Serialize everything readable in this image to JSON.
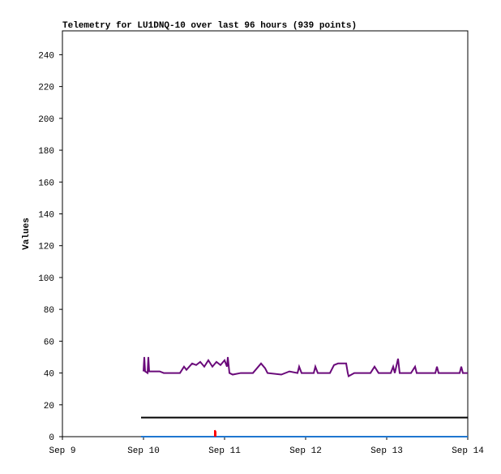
{
  "chart_data": {
    "type": "line",
    "title": "Telemetry for LU1DNQ-10 over last 96 hours (939 points)",
    "y_label": "Values",
    "xlim": [
      9,
      14
    ],
    "ylim": [
      0,
      255
    ],
    "xticks": [
      {
        "value": 9,
        "label": "Sep 9"
      },
      {
        "value": 10,
        "label": "Sep 10"
      },
      {
        "value": 11,
        "label": "Sep 11"
      },
      {
        "value": 12,
        "label": "Sep 12"
      },
      {
        "value": 13,
        "label": "Sep 13"
      },
      {
        "value": 14,
        "label": "Sep 14"
      }
    ],
    "yticks": [
      0,
      20,
      40,
      60,
      80,
      100,
      120,
      140,
      160,
      180,
      200,
      220,
      240
    ],
    "grid": false,
    "series": [
      {
        "color": "#6a0a7a",
        "x": [
          10.0,
          10.01,
          10.02,
          10.05,
          10.06,
          10.07,
          10.2,
          10.25,
          10.4,
          10.45,
          10.5,
          10.53,
          10.6,
          10.65,
          10.7,
          10.75,
          10.8,
          10.85,
          10.9,
          10.95,
          11.0,
          11.03,
          11.04,
          11.06,
          11.1,
          11.2,
          11.35,
          11.4,
          11.45,
          11.5,
          11.53,
          11.7,
          11.8,
          11.9,
          11.92,
          11.95,
          12.1,
          12.12,
          12.15,
          12.3,
          12.35,
          12.4,
          12.5,
          12.52,
          12.53,
          12.6,
          12.8,
          12.85,
          12.9,
          13.05,
          13.08,
          13.1,
          13.14,
          13.16,
          13.3,
          13.35,
          13.37,
          13.6,
          13.62,
          13.64,
          13.8,
          13.9,
          13.92,
          13.94,
          14.0
        ],
        "values": [
          41,
          50,
          41,
          40,
          50,
          41,
          41,
          40,
          40,
          40,
          44,
          42,
          46,
          45,
          47,
          44,
          48,
          44,
          47,
          45,
          48,
          44,
          50,
          40,
          39,
          40,
          40,
          43,
          46,
          43,
          40,
          39,
          41,
          40,
          44,
          40,
          40,
          44,
          40,
          40,
          45,
          46,
          46,
          40,
          38,
          40,
          40,
          44,
          40,
          40,
          44,
          40,
          49,
          40,
          40,
          44,
          40,
          40,
          44,
          40,
          40,
          40,
          44,
          40,
          40
        ]
      },
      {
        "color": "#000000",
        "x": [
          9.97,
          14.0
        ],
        "values": [
          12,
          12
        ]
      },
      {
        "color": "#1f77d0",
        "x": [
          9.97,
          14.0
        ],
        "values": [
          0,
          0
        ]
      },
      {
        "color": "#ff0000",
        "x": [
          10.88,
          10.88,
          10.89,
          10.89
        ],
        "values": [
          0,
          4,
          3,
          0
        ]
      }
    ]
  }
}
